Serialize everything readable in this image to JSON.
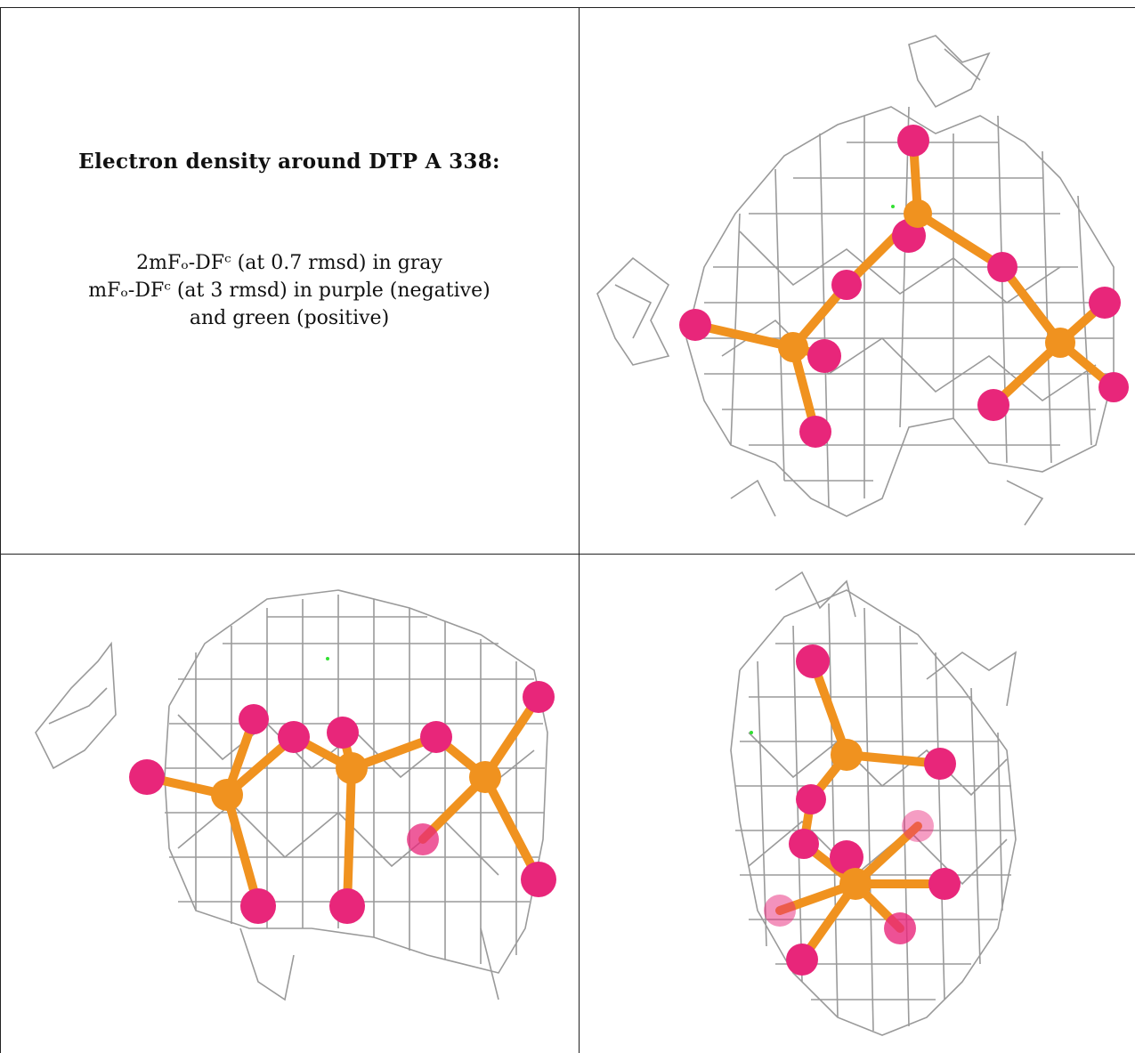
{
  "caption": {
    "title": "Electron density around DTP A 338:",
    "line1": "2mFₒ-DFᶜ (at 0.7 rmsd) in gray",
    "line2": "mFₒ-DFᶜ (at 3 rmsd) in purple (negative)",
    "line3": "and green (positive)"
  },
  "colors": {
    "mesh": "#9a9a9a",
    "phosphorus": "#f0921f",
    "oxygen": "#e8267a",
    "positive_density": "#32e032",
    "border": "#222222"
  },
  "panels": [
    {
      "name": "view-1"
    },
    {
      "name": "view-2"
    },
    {
      "name": "view-3"
    }
  ]
}
